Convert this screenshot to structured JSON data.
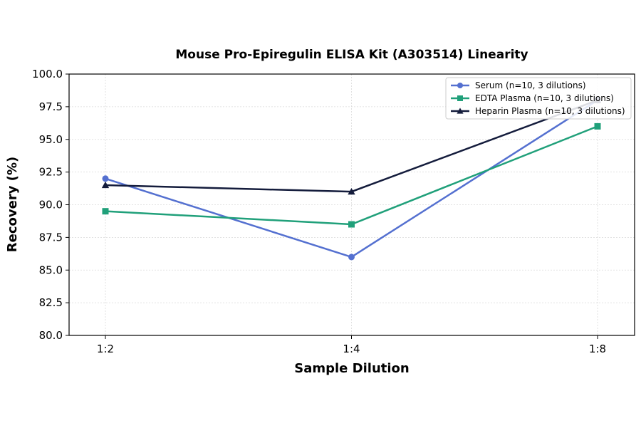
{
  "chart_data": {
    "type": "line",
    "title": "Mouse Pro-Epiregulin ELISA Kit (A303514) Linearity",
    "xlabel": "Sample Dilution",
    "ylabel": "Recovery (%)",
    "categories": [
      "1:2",
      "1:4",
      "1:8"
    ],
    "ylim": [
      80.0,
      100.0
    ],
    "yticks": [
      "80.0",
      "82.5",
      "85.0",
      "87.5",
      "90.0",
      "92.5",
      "95.0",
      "97.5",
      "100.0"
    ],
    "grid": true,
    "legend_position": "top-right",
    "series": [
      {
        "name": "Serum (n=10, 3 dilutions)",
        "values": [
          92.0,
          86.0,
          98.0
        ],
        "color": "#5470d0",
        "marker": "circle"
      },
      {
        "name": "EDTA Plasma (n=10, 3 dilutions)",
        "values": [
          89.5,
          88.5,
          96.0
        ],
        "color": "#20a07a",
        "marker": "square"
      },
      {
        "name": "Heparin Plasma (n=10, 3 dilutions)",
        "values": [
          91.5,
          91.0,
          98.0
        ],
        "color": "#141c3c",
        "marker": "triangle"
      }
    ]
  }
}
